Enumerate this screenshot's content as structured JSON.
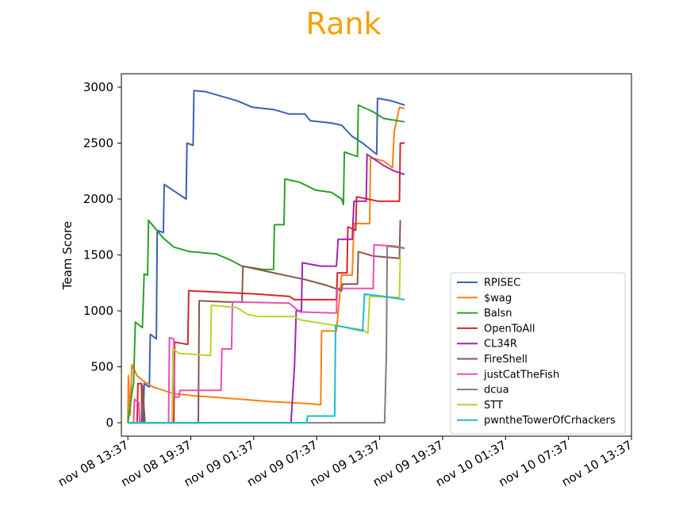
{
  "chart_data": {
    "type": "line",
    "title": "Rank",
    "title_color": "#f5a100",
    "xlabel": "",
    "ylabel": "Team Score",
    "xlim": [
      "nov 08 13:00",
      "nov 10 13:37"
    ],
    "ylim": [
      -120,
      3120
    ],
    "x_ticks": [
      "nov 08 13:37",
      "nov 08 19:37",
      "nov 09 01:37",
      "nov 09 07:37",
      "nov 09 13:37",
      "nov 09 19:37",
      "nov 10 01:37",
      "nov 10 07:37",
      "nov 10 13:37"
    ],
    "y_ticks": [
      0,
      500,
      1000,
      1500,
      2000,
      2500,
      3000
    ],
    "grid": false,
    "legend_position": "lower-right",
    "series": [
      {
        "name": "RPISEC",
        "color": "#3a62b0",
        "points": [
          [
            "nov 08 13:37",
            0
          ],
          [
            "nov 08 15:05",
            0
          ],
          [
            "nov 08 15:10",
            350
          ],
          [
            "nov 08 15:40",
            320
          ],
          [
            "nov 08 15:45",
            790
          ],
          [
            "nov 08 16:20",
            750
          ],
          [
            "nov 08 16:25",
            1720
          ],
          [
            "nov 08 17:00",
            1700
          ],
          [
            "nov 08 17:05",
            2130
          ],
          [
            "nov 08 19:10",
            2000
          ],
          [
            "nov 08 19:15",
            2500
          ],
          [
            "nov 08 19:50",
            2480
          ],
          [
            "nov 08 19:55",
            2970
          ],
          [
            "nov 08 21:00",
            2960
          ],
          [
            "nov 09 00:00",
            2880
          ],
          [
            "nov 09 01:30",
            2820
          ],
          [
            "nov 09 03:30",
            2800
          ],
          [
            "nov 09 05:00",
            2760
          ],
          [
            "nov 09 06:30",
            2760
          ],
          [
            "nov 09 07:00",
            2700
          ],
          [
            "nov 09 09:00",
            2680
          ],
          [
            "nov 09 10:00",
            2660
          ],
          [
            "nov 09 11:00",
            2560
          ],
          [
            "nov 09 12:00",
            2500
          ],
          [
            "nov 09 13:20",
            2400
          ],
          [
            "nov 09 13:25",
            2900
          ],
          [
            "nov 09 14:40",
            2880
          ],
          [
            "nov 09 16:00",
            2840
          ]
        ]
      },
      {
        "name": "$wag",
        "color": "#ff7f0e",
        "points": [
          [
            "nov 08 13:37",
            0
          ],
          [
            "nov 08 13:40",
            420
          ],
          [
            "nov 08 13:50",
            70
          ],
          [
            "nov 08 14:00",
            520
          ],
          [
            "nov 08 14:30",
            420
          ],
          [
            "nov 08 15:00",
            380
          ],
          [
            "nov 08 16:00",
            320
          ],
          [
            "nov 08 18:00",
            260
          ],
          [
            "nov 08 20:00",
            240
          ],
          [
            "nov 08 23:00",
            220
          ],
          [
            "nov 09 03:00",
            190
          ],
          [
            "nov 09 07:00",
            170
          ],
          [
            "nov 09 08:00",
            160
          ],
          [
            "nov 09 08:05",
            820
          ],
          [
            "nov 09 09:30",
            820
          ],
          [
            "nov 09 10:00",
            1320
          ],
          [
            "nov 09 11:00",
            1320
          ],
          [
            "nov 09 11:10",
            1780
          ],
          [
            "nov 09 12:40",
            1780
          ],
          [
            "nov 09 12:45",
            2370
          ],
          [
            "nov 09 14:00",
            2340
          ],
          [
            "nov 09 14:50",
            2280
          ],
          [
            "nov 09 15:00",
            2600
          ],
          [
            "nov 09 15:30",
            2820
          ],
          [
            "nov 09 16:00",
            2810
          ]
        ]
      },
      {
        "name": "Balsn",
        "color": "#2ca02c",
        "points": [
          [
            "nov 08 13:37",
            0
          ],
          [
            "nov 08 14:00",
            260
          ],
          [
            "nov 08 14:10",
            350
          ],
          [
            "nov 08 14:20",
            900
          ],
          [
            "nov 08 15:00",
            850
          ],
          [
            "nov 08 15:10",
            1330
          ],
          [
            "nov 08 15:30",
            1320
          ],
          [
            "nov 08 15:35",
            1810
          ],
          [
            "nov 08 17:00",
            1650
          ],
          [
            "nov 08 18:00",
            1570
          ],
          [
            "nov 08 19:30",
            1530
          ],
          [
            "nov 08 22:00",
            1510
          ],
          [
            "nov 08 23:30",
            1450
          ],
          [
            "nov 09 00:30",
            1400
          ],
          [
            "nov 09 02:30",
            1370
          ],
          [
            "nov 09 03:30",
            1370
          ],
          [
            "nov 09 03:35",
            1770
          ],
          [
            "nov 09 04:30",
            1770
          ],
          [
            "nov 09 04:35",
            2180
          ],
          [
            "nov 09 06:00",
            2150
          ],
          [
            "nov 09 07:30",
            2080
          ],
          [
            "nov 09 09:00",
            2060
          ],
          [
            "nov 09 10:00",
            2000
          ],
          [
            "nov 09 10:10",
            1950
          ],
          [
            "nov 09 10:15",
            2420
          ],
          [
            "nov 09 11:30",
            2380
          ],
          [
            "nov 09 11:35",
            2840
          ],
          [
            "nov 09 13:00",
            2780
          ],
          [
            "nov 09 14:00",
            2720
          ],
          [
            "nov 09 16:00",
            2690
          ]
        ]
      },
      {
        "name": "OpenToAll",
        "color": "#d62728",
        "points": [
          [
            "nov 08 13:37",
            0
          ],
          [
            "nov 08 14:30",
            0
          ],
          [
            "nov 08 14:35",
            350
          ],
          [
            "nov 08 14:55",
            350
          ],
          [
            "nov 08 14:58",
            0
          ],
          [
            "nov 08 18:00",
            0
          ],
          [
            "nov 08 18:05",
            720
          ],
          [
            "nov 08 19:20",
            700
          ],
          [
            "nov 08 19:25",
            1180
          ],
          [
            "nov 09 02:00",
            1150
          ],
          [
            "nov 09 05:00",
            1130
          ],
          [
            "nov 09 05:30",
            1100
          ],
          [
            "nov 09 09:30",
            1100
          ],
          [
            "nov 09 09:35",
            1340
          ],
          [
            "nov 09 10:30",
            1340
          ],
          [
            "nov 09 10:35",
            1750
          ],
          [
            "nov 09 11:20",
            1720
          ],
          [
            "nov 09 11:25",
            2020
          ],
          [
            "nov 09 13:30",
            1980
          ],
          [
            "nov 09 15:30",
            1980
          ],
          [
            "nov 09 15:35",
            2500
          ],
          [
            "nov 09 16:00",
            2500
          ]
        ]
      },
      {
        "name": "CL34R",
        "color": "#9c27b0",
        "points": [
          [
            "nov 08 13:37",
            0
          ],
          [
            "nov 09 05:10",
            0
          ],
          [
            "nov 09 05:30",
            500
          ],
          [
            "nov 09 05:40",
            1000
          ],
          [
            "nov 09 06:10",
            1000
          ],
          [
            "nov 09 06:15",
            1430
          ],
          [
            "nov 09 08:00",
            1400
          ],
          [
            "nov 09 09:30",
            1400
          ],
          [
            "nov 09 09:40",
            1640
          ],
          [
            "nov 09 11:00",
            1640
          ],
          [
            "nov 09 11:10",
            1980
          ],
          [
            "nov 09 12:20",
            1980
          ],
          [
            "nov 09 12:25",
            2400
          ],
          [
            "nov 09 14:00",
            2300
          ],
          [
            "nov 09 15:00",
            2250
          ],
          [
            "nov 09 16:00",
            2220
          ]
        ]
      },
      {
        "name": "FireShell",
        "color": "#8c564b",
        "points": [
          [
            "nov 08 13:37",
            0
          ],
          [
            "nov 08 14:55",
            0
          ],
          [
            "nov 08 15:00",
            330
          ],
          [
            "nov 08 15:15",
            0
          ],
          [
            "nov 08 20:20",
            0
          ],
          [
            "nov 08 20:25",
            1090
          ],
          [
            "nov 08 23:00",
            1080
          ],
          [
            "nov 09 00:30",
            1080
          ],
          [
            "nov 09 00:35",
            1400
          ],
          [
            "nov 09 04:00",
            1330
          ],
          [
            "nov 09 05:30",
            1300
          ],
          [
            "nov 09 06:30",
            1280
          ],
          [
            "nov 09 08:30",
            1230
          ],
          [
            "nov 09 10:00",
            1180
          ],
          [
            "nov 09 10:05",
            1240
          ],
          [
            "nov 09 11:30",
            1240
          ],
          [
            "nov 09 11:35",
            1530
          ],
          [
            "nov 09 13:00",
            1490
          ],
          [
            "nov 09 15:30",
            1470
          ],
          [
            "nov 09 15:35",
            1810
          ]
        ]
      },
      {
        "name": "justCatTheFish",
        "color": "#e84fb4",
        "points": [
          [
            "nov 08 13:37",
            0
          ],
          [
            "nov 08 14:10",
            0
          ],
          [
            "nov 08 14:15",
            210
          ],
          [
            "nov 08 14:40",
            180
          ],
          [
            "nov 08 14:45",
            0
          ],
          [
            "nov 08 17:30",
            0
          ],
          [
            "nov 08 17:35",
            760
          ],
          [
            "nov 08 18:00",
            750
          ],
          [
            "nov 08 18:05",
            230
          ],
          [
            "nov 08 18:30",
            230
          ],
          [
            "nov 08 18:35",
            290
          ],
          [
            "nov 08 22:30",
            290
          ],
          [
            "nov 08 22:35",
            660
          ],
          [
            "nov 08 23:30",
            660
          ],
          [
            "nov 08 23:35",
            1080
          ],
          [
            "nov 09 05:00",
            1070
          ],
          [
            "nov 09 06:00",
            990
          ],
          [
            "nov 09 09:30",
            980
          ],
          [
            "nov 09 09:35",
            1200
          ],
          [
            "nov 09 13:00",
            1200
          ],
          [
            "nov 09 13:05",
            1590
          ],
          [
            "nov 09 15:00",
            1580
          ],
          [
            "nov 09 16:00",
            1560
          ]
        ]
      },
      {
        "name": "dcua",
        "color": "#7f7f7f",
        "points": [
          [
            "nov 08 13:37",
            0
          ],
          [
            "nov 09 14:05",
            0
          ],
          [
            "nov 09 14:15",
            600
          ],
          [
            "nov 09 14:20",
            1580
          ],
          [
            "nov 09 16:00",
            1560
          ]
        ]
      },
      {
        "name": "STT",
        "color": "#bcd22c",
        "points": [
          [
            "nov 08 13:37",
            0
          ],
          [
            "nov 08 17:50",
            0
          ],
          [
            "nov 08 17:55",
            660
          ],
          [
            "nov 08 18:30",
            620
          ],
          [
            "nov 08 21:30",
            600
          ],
          [
            "nov 08 21:35",
            1050
          ],
          [
            "nov 09 00:00",
            1030
          ],
          [
            "nov 09 01:00",
            970
          ],
          [
            "nov 09 02:00",
            950
          ],
          [
            "nov 09 05:30",
            950
          ],
          [
            "nov 09 06:00",
            920
          ],
          [
            "nov 09 08:00",
            890
          ],
          [
            "nov 09 10:00",
            860
          ],
          [
            "nov 09 12:00",
            830
          ],
          [
            "nov 09 12:30",
            800
          ],
          [
            "nov 09 12:40",
            1130
          ],
          [
            "nov 09 15:30",
            1120
          ],
          [
            "nov 09 15:35",
            1500
          ]
        ]
      },
      {
        "name": "pwntheTowerOfCrhackers",
        "color": "#17becf",
        "points": [
          [
            "nov 08 13:37",
            0
          ],
          [
            "nov 09 06:40",
            0
          ],
          [
            "nov 09 06:45",
            60
          ],
          [
            "nov 09 09:20",
            60
          ],
          [
            "nov 09 09:25",
            870
          ],
          [
            "nov 09 10:30",
            850
          ],
          [
            "nov 09 11:30",
            830
          ],
          [
            "nov 09 12:00",
            820
          ],
          [
            "nov 09 12:10",
            1150
          ],
          [
            "nov 09 14:00",
            1130
          ],
          [
            "nov 09 16:00",
            1100
          ]
        ]
      }
    ]
  }
}
